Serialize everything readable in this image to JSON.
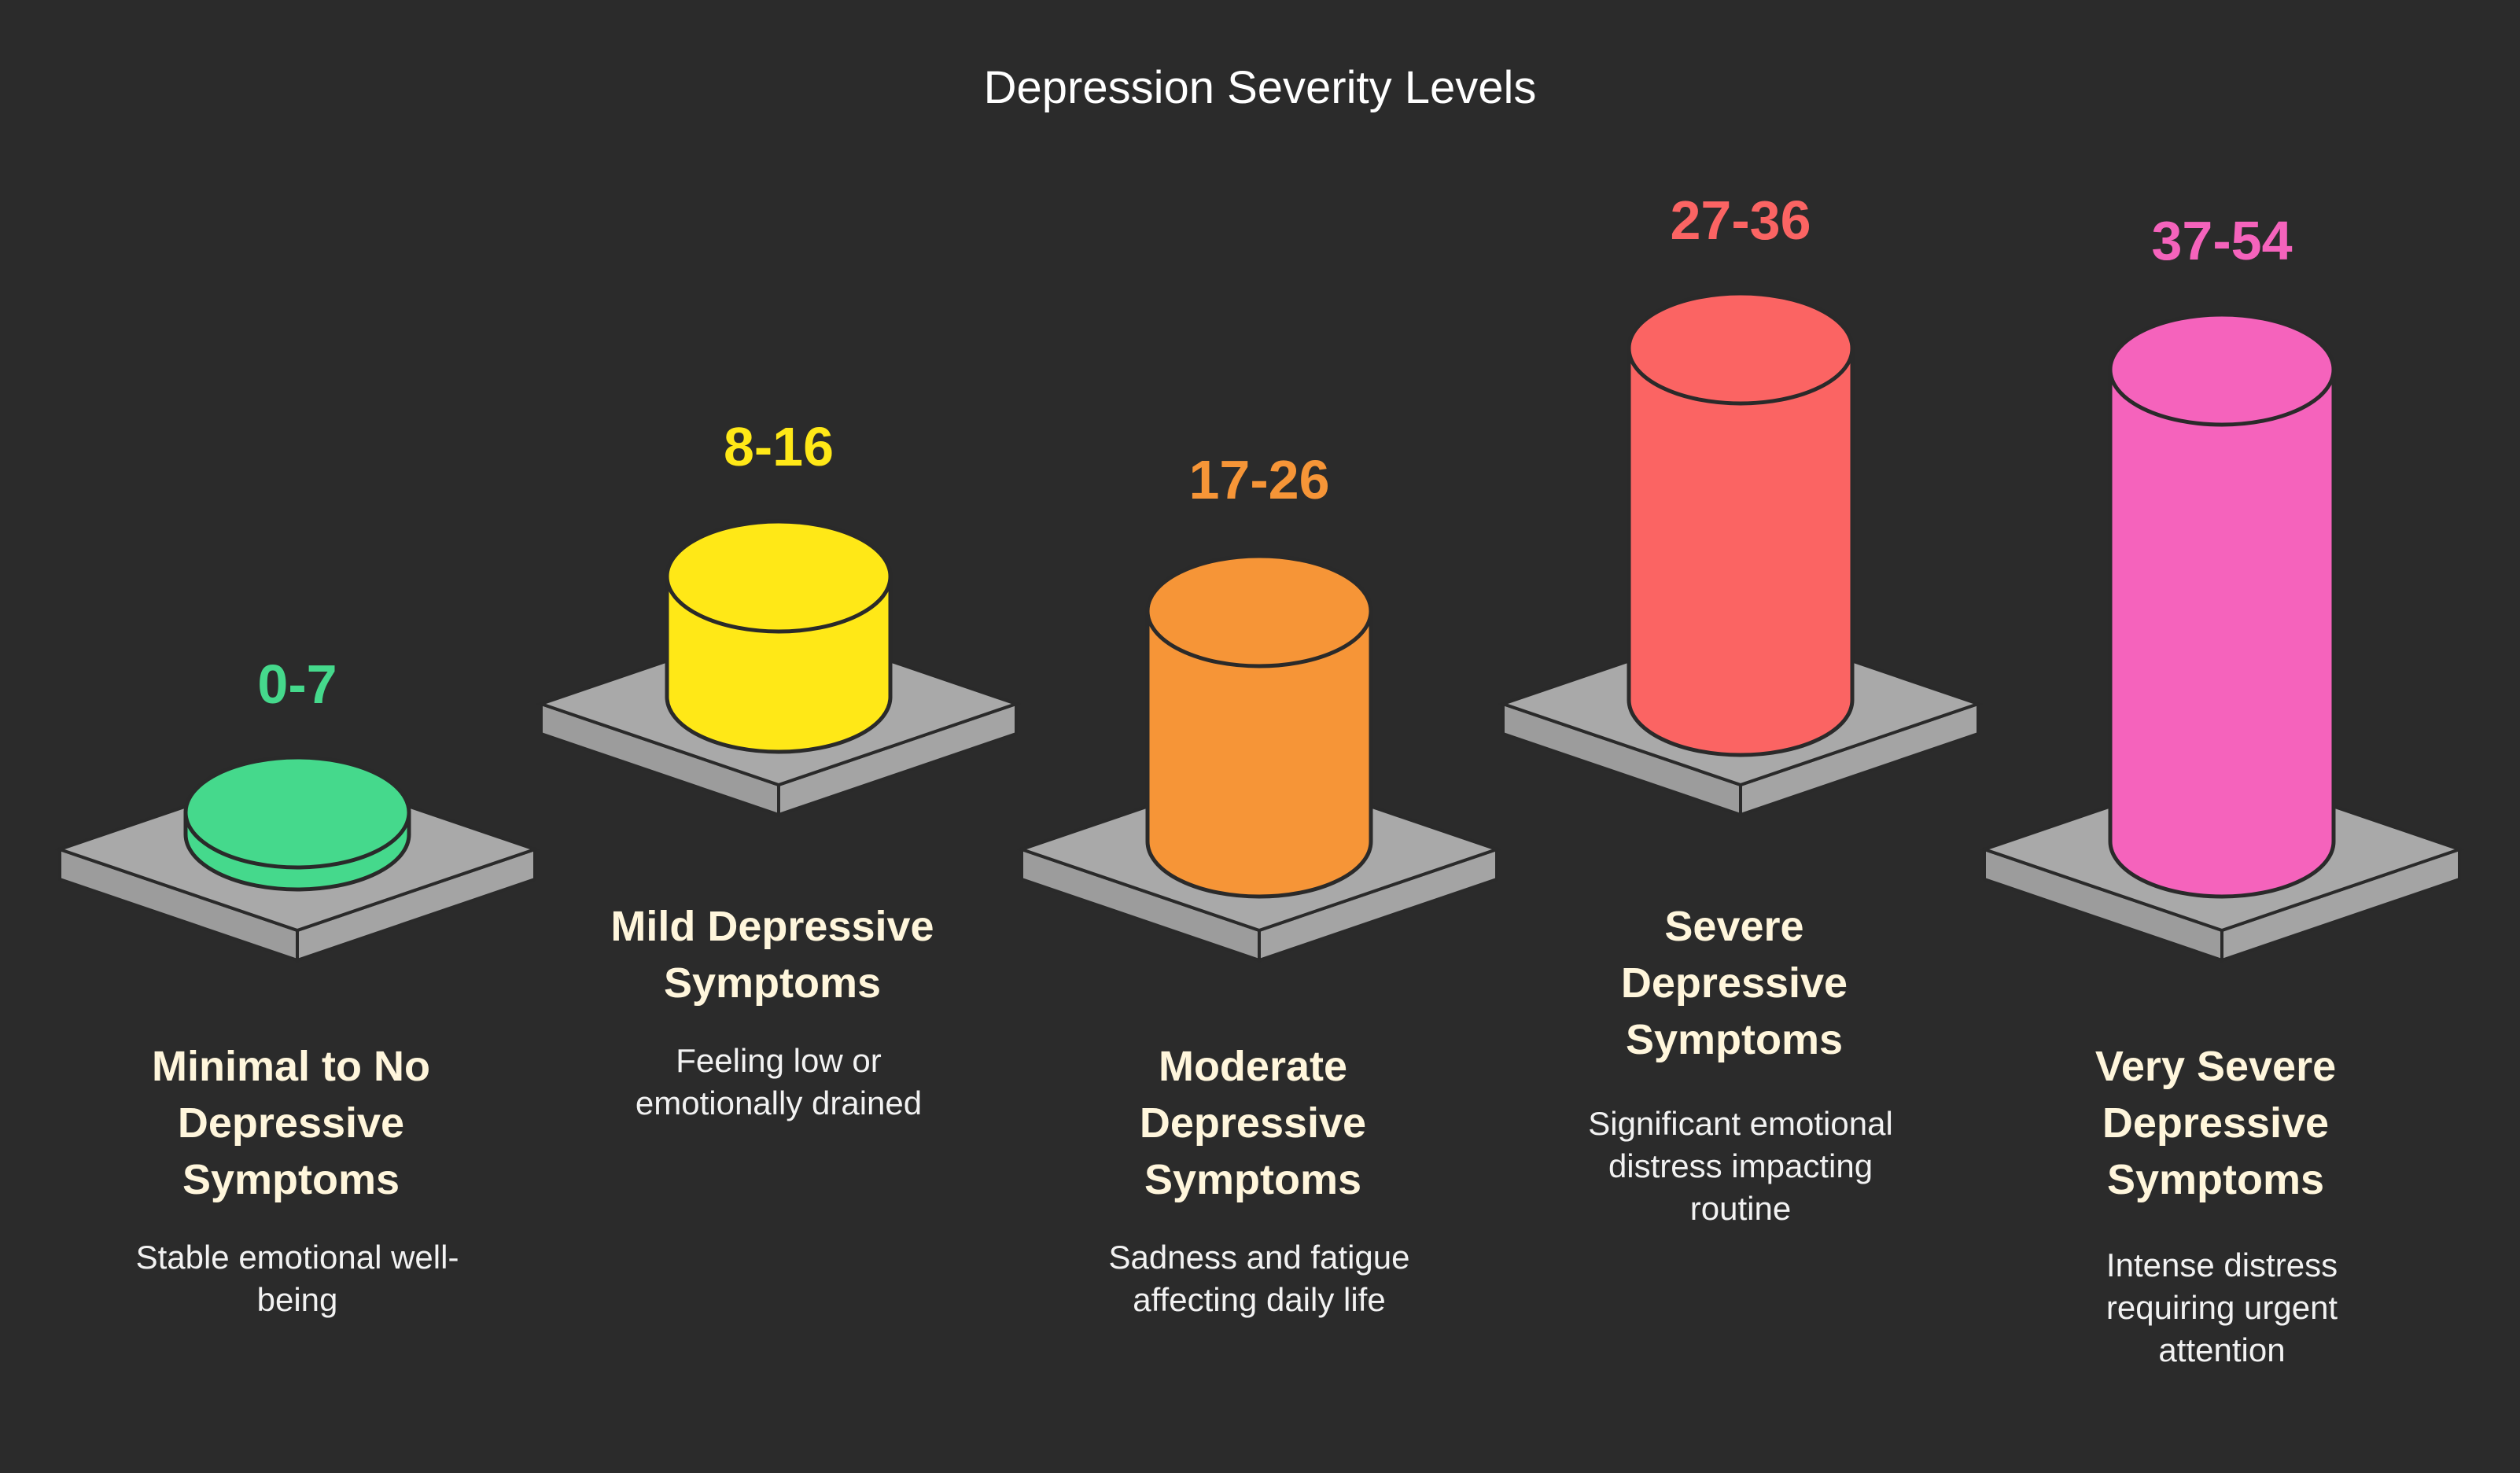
{
  "title": "Depression Severity Levels",
  "levels": [
    {
      "range": "0-7",
      "name": [
        "Minimal to No",
        "Depressive",
        "Symptoms"
      ],
      "description": [
        "Stable emotional well-",
        "being"
      ],
      "color": "#45d98c",
      "range_color": "#45d98c"
    },
    {
      "range": "8-16",
      "name": [
        "Mild Depressive",
        "Symptoms"
      ],
      "description": [
        "Feeling low or",
        "emotionally drained"
      ],
      "color": "#ffe817",
      "range_color": "#ffe817"
    },
    {
      "range": "17-26",
      "name": [
        "Moderate",
        "Depressive",
        "Symptoms"
      ],
      "description": [
        "Sadness and fatigue",
        "affecting daily life"
      ],
      "color": "#f69537",
      "range_color": "#f69537"
    },
    {
      "range": "27-36",
      "name": [
        "Severe",
        "Depressive",
        "Symptoms"
      ],
      "description": [
        "Significant emotional",
        "distress impacting",
        "routine"
      ],
      "color": "#fb6463",
      "range_color": "#fb6463"
    },
    {
      "range": "37-54",
      "name": [
        "Very Severe",
        "Depressive",
        "Symptoms"
      ],
      "description": [
        "Intense distress",
        "requiring urgent",
        "attention"
      ],
      "color": "#f563bc",
      "range_color": "#f563bc"
    }
  ]
}
